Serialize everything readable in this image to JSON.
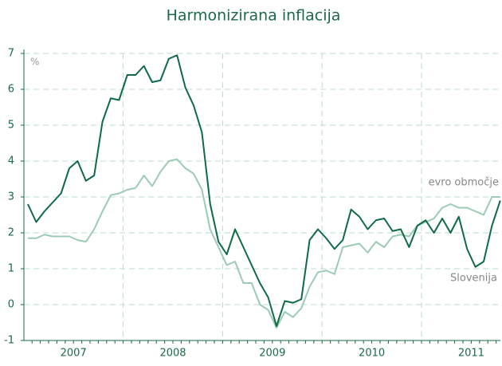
{
  "chart_data": {
    "type": "line",
    "title": "Harmonizirana inflacija",
    "ylabel": "%",
    "categories": [
      null,
      null,
      null,
      null,
      null,
      null,
      "2007",
      null,
      null,
      null,
      null,
      null,
      null,
      null,
      null,
      null,
      null,
      null,
      "2008",
      null,
      null,
      null,
      null,
      null,
      null,
      null,
      null,
      null,
      null,
      null,
      "2009",
      null,
      null,
      null,
      null,
      null,
      null,
      null,
      null,
      null,
      null,
      null,
      "2010",
      null,
      null,
      null,
      null,
      null,
      null,
      null,
      null,
      null,
      null,
      null,
      "2011",
      null,
      null,
      null
    ],
    "series": [
      {
        "name": "Slovenija",
        "color": "#0d6b45",
        "values": [
          2.8,
          2.3,
          2.6,
          2.85,
          3.1,
          3.8,
          4.0,
          3.45,
          3.6,
          5.1,
          5.75,
          5.7,
          6.4,
          6.4,
          6.65,
          6.2,
          6.25,
          6.85,
          6.95,
          6.05,
          5.55,
          4.8,
          2.8,
          1.75,
          1.4,
          2.1,
          1.6,
          1.1,
          0.6,
          0.2,
          -0.6,
          0.1,
          0.05,
          0.15,
          1.8,
          2.1,
          1.85,
          1.55,
          1.8,
          2.65,
          2.45,
          2.1,
          2.35,
          2.4,
          2.05,
          2.1,
          1.6,
          2.2,
          2.35,
          2.0,
          2.4,
          2.0,
          2.45,
          1.55,
          1.05,
          1.2,
          2.2,
          2.9
        ]
      },
      {
        "name": "evro območje",
        "color": "#9ccbb5",
        "values": [
          1.85,
          1.85,
          1.95,
          1.9,
          1.9,
          1.9,
          1.8,
          1.75,
          2.1,
          2.6,
          3.05,
          3.1,
          3.2,
          3.25,
          3.6,
          3.3,
          3.7,
          4.0,
          4.05,
          3.8,
          3.65,
          3.2,
          2.1,
          1.6,
          1.1,
          1.2,
          0.6,
          0.6,
          0.0,
          -0.15,
          -0.65,
          -0.2,
          -0.35,
          -0.1,
          0.5,
          0.9,
          0.95,
          0.85,
          1.6,
          1.65,
          1.7,
          1.45,
          1.75,
          1.6,
          1.9,
          1.95,
          1.9,
          2.2,
          2.3,
          2.4,
          2.7,
          2.8,
          2.7,
          2.7,
          2.6,
          2.5,
          3.0,
          3.0
        ]
      }
    ],
    "ylim": [
      -1,
      7
    ],
    "yticks": [
      -1,
      0,
      1,
      2,
      3,
      4,
      5,
      6,
      7
    ],
    "grid": true
  }
}
